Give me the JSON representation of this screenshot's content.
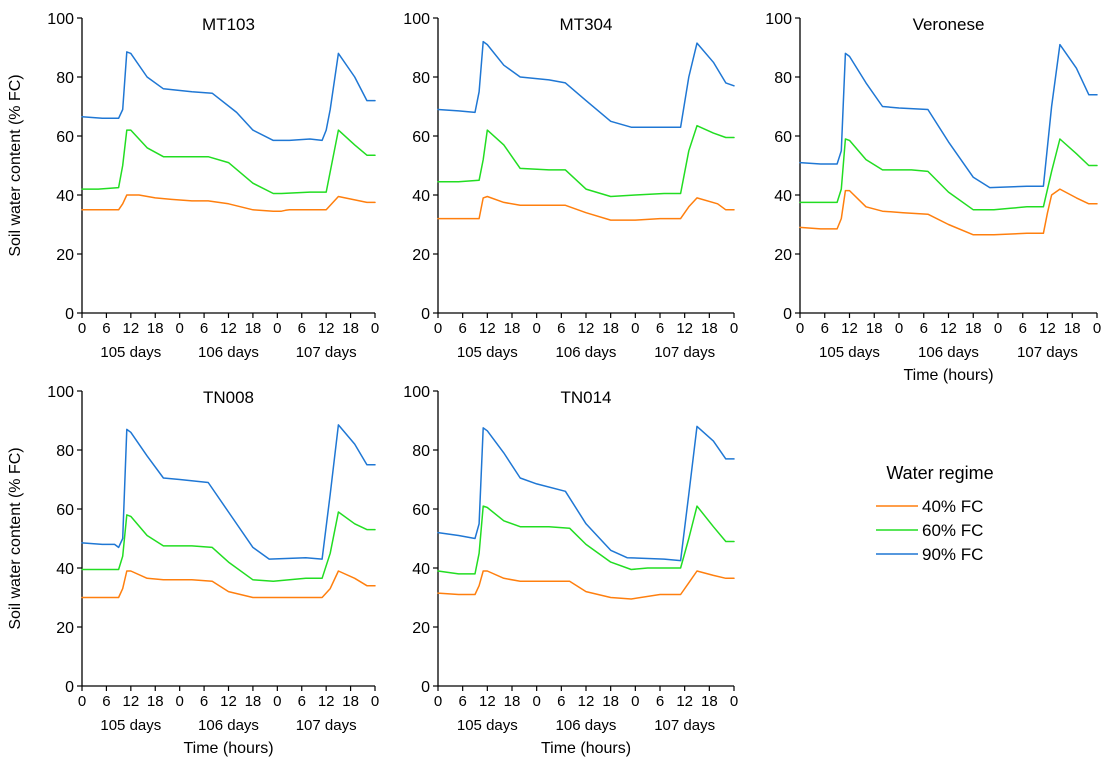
{
  "ylabel": "Soil water content (% FC)",
  "xlabel": "Time (hours)",
  "legend": {
    "title": "Water regime",
    "entries": [
      "40% FC",
      "60% FC",
      "90% FC"
    ]
  },
  "colors": {
    "40% FC": "#ff7f0e",
    "60% FC": "#22dd22",
    "90% FC": "#1f77d4"
  },
  "x_tick_labels": [
    "0",
    "6",
    "12",
    "18",
    "0",
    "6",
    "12",
    "18",
    "0",
    "6",
    "12",
    "18",
    "0"
  ],
  "day_labels": [
    "105 days",
    "106 days",
    "107 days"
  ],
  "y_tick_labels": [
    "0",
    "20",
    "40",
    "60",
    "80",
    "100"
  ],
  "chart_data": [
    {
      "type": "line",
      "title": "MT103",
      "x_unit": "hours",
      "xlim": [
        0,
        72
      ],
      "ylim": [
        0,
        100
      ],
      "show_xlabel": false,
      "show_ylabel": true,
      "series": [
        {
          "name": "40% FC",
          "x": [
            0,
            4,
            9,
            10,
            11,
            14,
            18,
            22,
            27,
            31,
            36,
            42,
            47,
            49,
            50,
            51,
            56,
            60,
            63,
            70,
            72
          ],
          "y": [
            35,
            35,
            35,
            37,
            40,
            40,
            39,
            38.5,
            38,
            38,
            37,
            35,
            34.5,
            34.5,
            34.8,
            35,
            35,
            35,
            39.5,
            37.5,
            37.5
          ]
        },
        {
          "name": "60% FC",
          "x": [
            0,
            4,
            9,
            10,
            11,
            12,
            16,
            20,
            27,
            31,
            36,
            42,
            47,
            49,
            56,
            58,
            60,
            63,
            67,
            70,
            72
          ],
          "y": [
            42,
            42,
            42.5,
            50,
            62,
            62,
            56,
            53,
            53,
            53,
            51,
            44,
            40.5,
            40.5,
            41,
            41,
            41,
            62,
            57,
            53.5,
            53.5
          ]
        },
        {
          "name": "90% FC",
          "x": [
            0,
            5,
            9,
            10,
            11,
            12,
            16,
            20,
            27,
            32,
            38,
            42,
            47,
            51,
            56,
            59,
            60,
            61,
            63,
            67,
            70,
            72
          ],
          "y": [
            66.5,
            66,
            66,
            69,
            88.5,
            88,
            80,
            76,
            75,
            74.5,
            68,
            62,
            58.5,
            58.5,
            59,
            58.5,
            62,
            69,
            88,
            80,
            72,
            72
          ]
        }
      ]
    },
    {
      "type": "line",
      "title": "MT304",
      "x_unit": "hours",
      "xlim": [
        0,
        72
      ],
      "ylim": [
        0,
        100
      ],
      "show_xlabel": false,
      "show_ylabel": false,
      "series": [
        {
          "name": "40% FC",
          "x": [
            0,
            5,
            10,
            11,
            12,
            16,
            20,
            24,
            31,
            36,
            42,
            48,
            54,
            59,
            61,
            63,
            68,
            70,
            72
          ],
          "y": [
            32,
            32,
            32,
            39,
            39.5,
            37.5,
            36.5,
            36.5,
            36.5,
            34,
            31.5,
            31.5,
            32,
            32,
            36,
            39,
            37,
            35,
            35
          ]
        },
        {
          "name": "60% FC",
          "x": [
            0,
            5,
            10,
            11,
            12,
            16,
            20,
            27,
            31,
            36,
            42,
            48,
            55,
            59,
            61,
            63,
            67,
            70,
            72
          ],
          "y": [
            44.5,
            44.5,
            45,
            52,
            62,
            57,
            49,
            48.5,
            48.5,
            42,
            39.5,
            40,
            40.5,
            40.5,
            55,
            63.5,
            61,
            59.5,
            59.5
          ]
        },
        {
          "name": "90% FC",
          "x": [
            0,
            5,
            9,
            10,
            11,
            12,
            16,
            20,
            27,
            31,
            36,
            42,
            47,
            54,
            59,
            61,
            63,
            67,
            70,
            72
          ],
          "y": [
            69,
            68.5,
            68,
            75,
            92,
            91,
            84,
            80,
            79,
            78,
            72,
            65,
            63,
            63,
            63,
            80,
            91.5,
            85,
            78,
            77
          ]
        }
      ]
    },
    {
      "type": "line",
      "title": "Veronese",
      "x_unit": "hours",
      "xlim": [
        0,
        72
      ],
      "ylim": [
        0,
        100
      ],
      "show_xlabel": true,
      "show_ylabel": false,
      "series": [
        {
          "name": "40% FC",
          "x": [
            0,
            5,
            9,
            10,
            11,
            12,
            16,
            20,
            25,
            31,
            36,
            42,
            47,
            55,
            59,
            60,
            61,
            63,
            67,
            70,
            72
          ],
          "y": [
            29,
            28.5,
            28.5,
            32,
            41.5,
            41.5,
            36,
            34.5,
            34,
            33.5,
            30,
            26.5,
            26.5,
            27,
            27,
            34,
            40,
            42,
            39,
            37,
            37
          ]
        },
        {
          "name": "60% FC",
          "x": [
            0,
            5,
            9,
            10,
            11,
            12,
            16,
            20,
            27,
            31,
            36,
            42,
            47,
            51,
            55,
            59,
            61,
            63,
            67,
            70,
            72
          ],
          "y": [
            37.5,
            37.5,
            37.5,
            42,
            59,
            58.5,
            52,
            48.5,
            48.5,
            48,
            41,
            35,
            35,
            35.5,
            36,
            36,
            48,
            59,
            54,
            50,
            50
          ]
        },
        {
          "name": "90% FC",
          "x": [
            0,
            5,
            9,
            10,
            11,
            12,
            16,
            20,
            24,
            31,
            36,
            42,
            46,
            55,
            59,
            61,
            63,
            67,
            70,
            72
          ],
          "y": [
            51,
            50.5,
            50.5,
            55,
            88,
            87,
            78,
            70,
            69.5,
            69,
            58,
            46,
            42.5,
            43,
            43,
            70,
            91,
            83,
            74,
            74
          ]
        }
      ]
    },
    {
      "type": "line",
      "title": "TN008",
      "x_unit": "hours",
      "xlim": [
        0,
        72
      ],
      "ylim": [
        0,
        100
      ],
      "show_xlabel": true,
      "show_ylabel": true,
      "series": [
        {
          "name": "40% FC",
          "x": [
            0,
            5,
            9,
            10,
            11,
            12,
            16,
            20,
            27,
            32,
            36,
            42,
            47,
            54,
            59,
            61,
            63,
            67,
            70,
            72
          ],
          "y": [
            30,
            30,
            30,
            33,
            39,
            39,
            36.5,
            36,
            36,
            35.5,
            32,
            30,
            30,
            30,
            30,
            33,
            39,
            36.5,
            34,
            34
          ]
        },
        {
          "name": "60% FC",
          "x": [
            0,
            5,
            9,
            10,
            11,
            12,
            16,
            20,
            27,
            32,
            36,
            42,
            47,
            51,
            55,
            59,
            61,
            63,
            67,
            70,
            72
          ],
          "y": [
            39.5,
            39.5,
            39.5,
            44,
            58,
            57.5,
            51,
            47.5,
            47.5,
            47,
            42,
            36,
            35.5,
            36,
            36.5,
            36.5,
            45,
            59,
            55,
            53,
            53
          ]
        },
        {
          "name": "90% FC",
          "x": [
            0,
            5,
            8,
            9,
            10,
            11,
            12,
            16,
            20,
            24,
            31,
            36,
            42,
            46,
            55,
            59,
            61,
            63,
            67,
            70,
            72
          ],
          "y": [
            48.5,
            48,
            48,
            47,
            50,
            87,
            86,
            78,
            70.5,
            70,
            69,
            59,
            47,
            43,
            43.5,
            43,
            65,
            88.5,
            82,
            75,
            75
          ]
        }
      ]
    },
    {
      "type": "line",
      "title": "TN014",
      "x_unit": "hours",
      "xlim": [
        0,
        72
      ],
      "ylim": [
        0,
        100
      ],
      "show_xlabel": true,
      "show_ylabel": false,
      "series": [
        {
          "name": "40% FC",
          "x": [
            0,
            5,
            9,
            10,
            11,
            12,
            16,
            20,
            27,
            32,
            36,
            42,
            47,
            54,
            59,
            61,
            63,
            67,
            70,
            72
          ],
          "y": [
            31.5,
            31,
            31,
            34,
            39,
            39,
            36.5,
            35.5,
            35.5,
            35.5,
            32,
            30,
            29.5,
            31,
            31,
            35,
            39,
            37.5,
            36.5,
            36.5
          ]
        },
        {
          "name": "60% FC",
          "x": [
            0,
            5,
            9,
            10,
            11,
            12,
            16,
            20,
            27,
            32,
            36,
            42,
            47,
            51,
            55,
            59,
            61,
            63,
            67,
            70,
            72
          ],
          "y": [
            39,
            38,
            38,
            45,
            61,
            60.5,
            56,
            54,
            54,
            53.5,
            48,
            42,
            39.5,
            40,
            40,
            40,
            50,
            61,
            54,
            49,
            49
          ]
        },
        {
          "name": "90% FC",
          "x": [
            0,
            5,
            9,
            10,
            11,
            12,
            16,
            20,
            24,
            31,
            36,
            42,
            46,
            55,
            59,
            61,
            63,
            67,
            70,
            72
          ],
          "y": [
            52,
            51,
            50,
            55,
            87.5,
            86.5,
            79,
            70.5,
            68.5,
            66,
            55,
            46,
            43.5,
            43,
            42.5,
            65,
            88,
            83,
            77,
            77
          ]
        }
      ]
    }
  ]
}
